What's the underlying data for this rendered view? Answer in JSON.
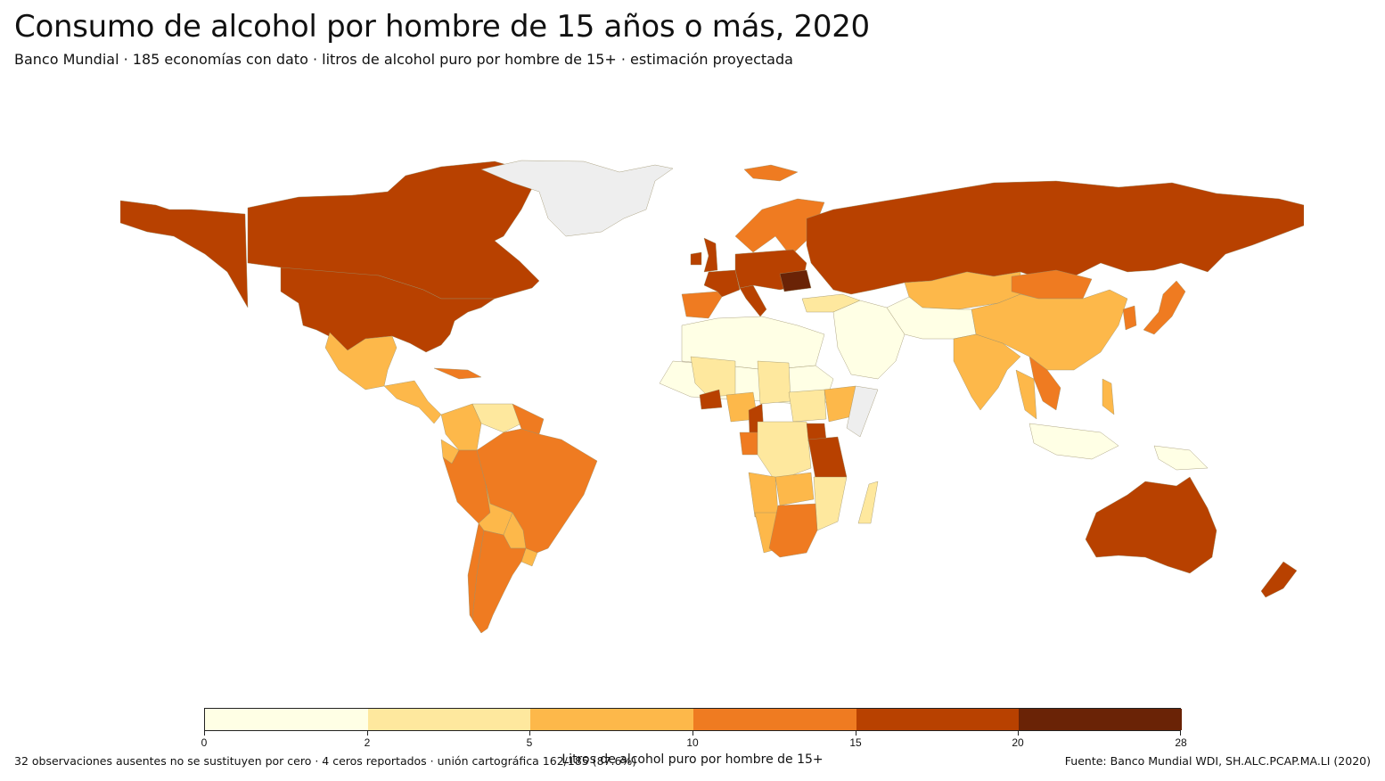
{
  "header": {
    "title": "Consumo de alcohol por hombre de 15 años o más, 2020",
    "subtitle": "Banco Mundial · 185 economías con dato · litros de alcohol puro por hombre de 15+ · estimación proyectada"
  },
  "legend": {
    "title": "Litros de alcohol puro por hombre de 15+",
    "ticks": [
      "0",
      "2",
      "5",
      "10",
      "15",
      "20",
      "28"
    ],
    "breaks": [
      0,
      2,
      5,
      10,
      15,
      20,
      28
    ],
    "colors": [
      "#ffffe5",
      "#fee89e",
      "#fdb84a",
      "#ef7b21",
      "#b84100",
      "#6a2306"
    ],
    "no_data_color": "#eeeeee"
  },
  "footer": {
    "footnote": "32 observaciones ausentes no se sustituyen por cero · 4 ceros reportados · unión cartográfica 162/185 (87.6%)",
    "source": "Fuente: Banco Mundial WDI, SH.ALC.PCAP.MA.LI (2020)"
  },
  "regions": [
    {
      "name": "Canadá",
      "bin": 4
    },
    {
      "name": "Estados Unidos",
      "bin": 4
    },
    {
      "name": "Alaska",
      "bin": 4
    },
    {
      "name": "Groenlandia",
      "bin": -1
    },
    {
      "name": "Islandia",
      "bin": 3
    },
    {
      "name": "México",
      "bin": 2
    },
    {
      "name": "Centroamérica",
      "bin": 2
    },
    {
      "name": "Cuba",
      "bin": 3
    },
    {
      "name": "Colombia",
      "bin": 2
    },
    {
      "name": "Venezuela",
      "bin": 1
    },
    {
      "name": "Guyanas",
      "bin": 3
    },
    {
      "name": "Ecuador",
      "bin": 2
    },
    {
      "name": "Perú",
      "bin": 3
    },
    {
      "name": "Brasil",
      "bin": 3
    },
    {
      "name": "Bolivia",
      "bin": 2
    },
    {
      "name": "Paraguay",
      "bin": 2
    },
    {
      "name": "Chile",
      "bin": 3
    },
    {
      "name": "Argentina",
      "bin": 3
    },
    {
      "name": "Uruguay",
      "bin": 2
    },
    {
      "name": "Escandinavia",
      "bin": 3
    },
    {
      "name": "Reino Unido",
      "bin": 4
    },
    {
      "name": "Irlanda",
      "bin": 4
    },
    {
      "name": "España",
      "bin": 3
    },
    {
      "name": "Francia",
      "bin": 4
    },
    {
      "name": "Italia",
      "bin": 4
    },
    {
      "name": "Europa Central",
      "bin": 4
    },
    {
      "name": "Rumanía",
      "bin": 5
    },
    {
      "name": "Rusia",
      "bin": 4
    },
    {
      "name": "Kazajistán",
      "bin": 2
    },
    {
      "name": "Mongolia",
      "bin": 3
    },
    {
      "name": "China",
      "bin": 2
    },
    {
      "name": "India",
      "bin": 2
    },
    {
      "name": "Turquía",
      "bin": 1
    },
    {
      "name": "Oriente Medio",
      "bin": 0
    },
    {
      "name": "Asia Central",
      "bin": 0
    },
    {
      "name": "Corea",
      "bin": 3
    },
    {
      "name": "Japón",
      "bin": 3
    },
    {
      "name": "Vietnam y Laos",
      "bin": 3
    },
    {
      "name": "Tailandia",
      "bin": 2
    },
    {
      "name": "Filipinas",
      "bin": 2
    },
    {
      "name": "Indonesia",
      "bin": 0
    },
    {
      "name": "Norte de África",
      "bin": 0
    },
    {
      "name": "Sáhara",
      "bin": 0
    },
    {
      "name": "Mali",
      "bin": 1
    },
    {
      "name": "Burkina Faso",
      "bin": 4
    },
    {
      "name": "Nigeria",
      "bin": 2
    },
    {
      "name": "Camerún",
      "bin": 4
    },
    {
      "name": "Chad",
      "bin": 1
    },
    {
      "name": "Sudán del Sur",
      "bin": 1
    },
    {
      "name": "Somalia",
      "bin": -1
    },
    {
      "name": "Etiopía",
      "bin": 2
    },
    {
      "name": "Gabón",
      "bin": 3
    },
    {
      "name": "RD Congo",
      "bin": 1
    },
    {
      "name": "Uganda",
      "bin": 4
    },
    {
      "name": "Tanzania",
      "bin": 4
    },
    {
      "name": "Angola",
      "bin": 2
    },
    {
      "name": "Zambia",
      "bin": 2
    },
    {
      "name": "Mozambique",
      "bin": 1
    },
    {
      "name": "Namibia",
      "bin": 2
    },
    {
      "name": "Sudáfrica",
      "bin": 3
    },
    {
      "name": "Madagascar",
      "bin": 1
    },
    {
      "name": "Australia",
      "bin": 4
    },
    {
      "name": "Nueva Zelanda",
      "bin": 4
    },
    {
      "name": "Papúa Nueva Guinea",
      "bin": 0
    }
  ]
}
